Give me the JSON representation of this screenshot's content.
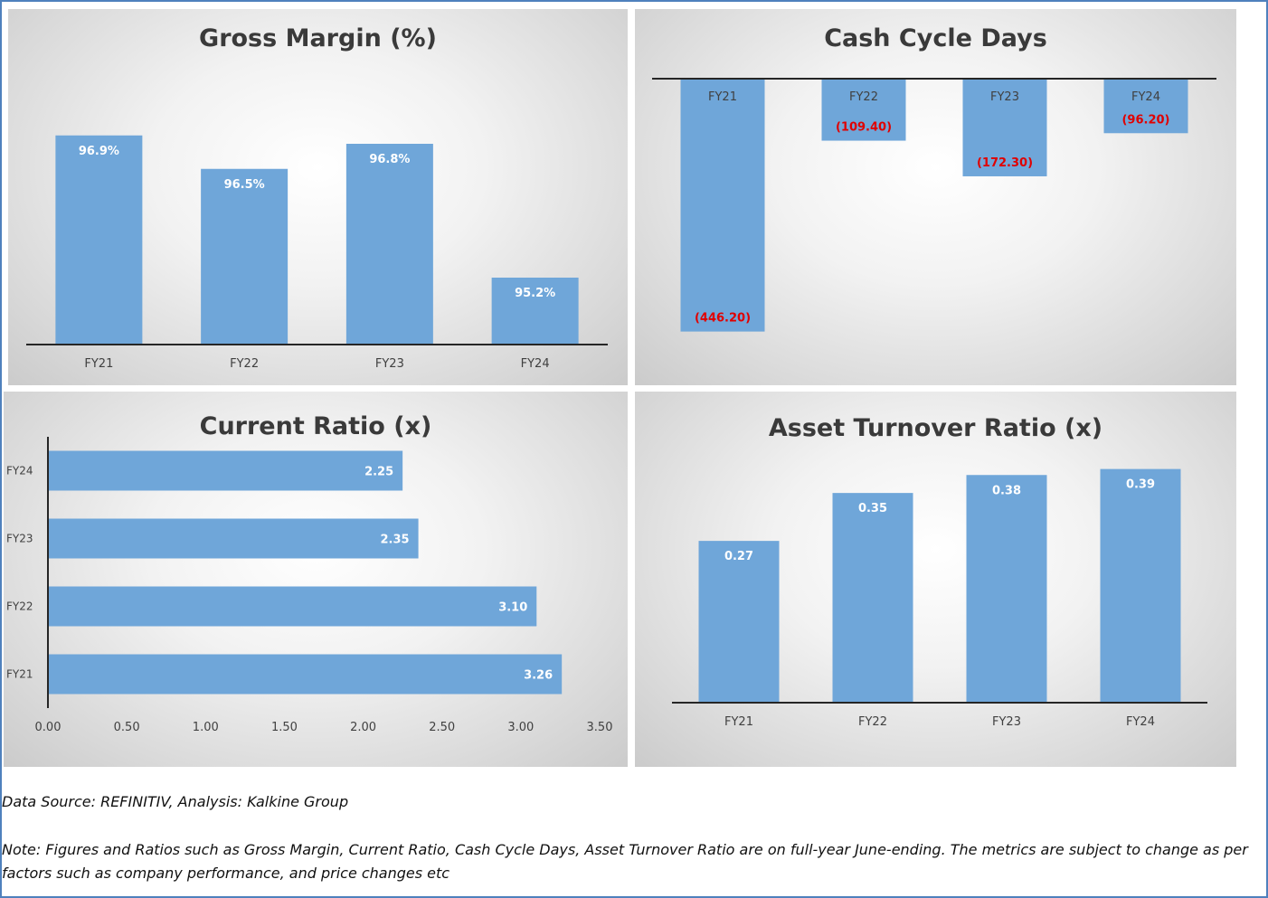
{
  "colors": {
    "bar": "#6fa6d9",
    "axis": "#262626",
    "text": "#404040",
    "neg_label": "#e00000",
    "pos_label": "#ffffff"
  },
  "footer": {
    "source": "Data Source: REFINITIV, Analysis: Kalkine Group",
    "note": "Note: Figures and Ratios such as Gross Margin, Current Ratio, Cash Cycle Days, Asset Turnover Ratio  are on full-year June-ending. The metrics are subject to change as per factors such as company performance, and price changes etc"
  },
  "chart_data": [
    {
      "id": "gross",
      "type": "bar",
      "title": "Gross Margin (%)",
      "categories": [
        "FY21",
        "FY22",
        "FY23",
        "FY24"
      ],
      "values": [
        96.9,
        96.5,
        96.8,
        95.2
      ],
      "labels": [
        "96.9%",
        "96.5%",
        "96.8%",
        "95.2%"
      ],
      "ylim": [
        94.4,
        97.2
      ]
    },
    {
      "id": "cash",
      "type": "bar",
      "title": "Cash Cycle Days",
      "categories": [
        "FY21",
        "FY22",
        "FY23",
        "FY24"
      ],
      "values": [
        -446.2,
        -109.4,
        -172.3,
        -96.2
      ],
      "labels": [
        "(446.20)",
        "(109.40)",
        "(172.30)",
        "(96.20)"
      ],
      "ylim": [
        -450,
        0
      ]
    },
    {
      "id": "current",
      "type": "bar",
      "orientation": "horizontal",
      "title": "Current Ratio (x)",
      "categories": [
        "FY24",
        "FY23",
        "FY22",
        "FY21"
      ],
      "values": [
        2.25,
        2.35,
        3.1,
        3.26
      ],
      "labels": [
        "2.25",
        "2.35",
        "3.10",
        "3.26"
      ],
      "xlim": [
        0,
        3.5
      ],
      "ticks": [
        "0.00",
        "0.50",
        "1.00",
        "1.50",
        "2.00",
        "2.50",
        "3.00",
        "3.50"
      ]
    },
    {
      "id": "asset",
      "type": "bar",
      "title": "Asset Turnover Ratio (x)",
      "categories": [
        "FY21",
        "FY22",
        "FY23",
        "FY24"
      ],
      "values": [
        0.27,
        0.35,
        0.38,
        0.39
      ],
      "labels": [
        "0.27",
        "0.35",
        "0.38",
        "0.39"
      ],
      "ylim": [
        0,
        0.4
      ]
    }
  ]
}
